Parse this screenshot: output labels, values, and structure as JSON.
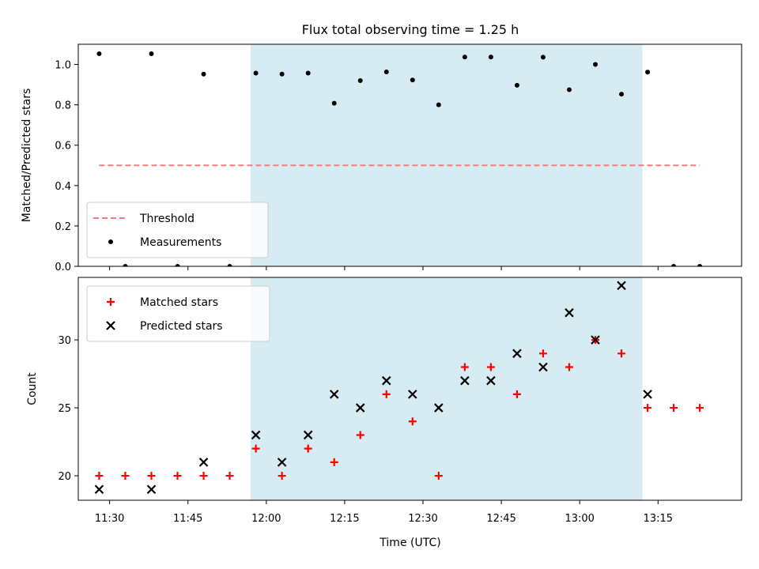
{
  "chart_data": {
    "title": "Flux total observing time = 1.25 h",
    "xlabel": "Time (UTC)",
    "x_ticks": [
      "11:30",
      "11:45",
      "12:00",
      "12:15",
      "12:30",
      "12:45",
      "13:00",
      "13:15"
    ],
    "x_range_minutes": [
      684,
      811
    ],
    "shaded_interval": {
      "start": "11:57",
      "end": "13:12",
      "color": "#add8e6"
    },
    "panels": [
      {
        "type": "scatter",
        "ylabel": "Matched/Predicted stars",
        "ylim": [
          0,
          1.1
        ],
        "yticks": [
          "0.0",
          "0.2",
          "0.4",
          "0.6",
          "0.8",
          "1.0"
        ],
        "legend_position": "lower-left",
        "threshold": {
          "name": "Threshold",
          "value": 0.5,
          "x_start": "11:28",
          "x_end": "13:23",
          "color": "#f08080"
        },
        "series": [
          {
            "name": "Measurements",
            "marker": "dot",
            "color": "#000000",
            "x": [
              "11:28",
              "11:33",
              "11:38",
              "11:43",
              "11:48",
              "11:53",
              "11:58",
              "12:03",
              "12:08",
              "12:13",
              "12:18",
              "12:23",
              "12:28",
              "12:33",
              "12:38",
              "12:43",
              "12:48",
              "12:53",
              "12:58",
              "13:03",
              "13:08",
              "13:13",
              "13:18",
              "13:23"
            ],
            "y": [
              1.053,
              0.0,
              1.053,
              0.0,
              0.952,
              0.0,
              0.957,
              0.952,
              0.957,
              0.808,
              0.92,
              0.963,
              0.923,
              0.8,
              1.037,
              1.037,
              0.897,
              1.036,
              0.875,
              1.0,
              0.853,
              0.962,
              0.0,
              0.0
            ]
          }
        ]
      },
      {
        "type": "scatter",
        "ylabel": "Count",
        "ylim": [
          18.2,
          34.6
        ],
        "yticks": [
          "20",
          "25",
          "30"
        ],
        "legend_position": "upper-left",
        "series": [
          {
            "name": "Matched stars",
            "marker": "plus",
            "color": "#ff0000",
            "x": [
              "11:28",
              "11:33",
              "11:38",
              "11:43",
              "11:48",
              "11:53",
              "11:58",
              "12:03",
              "12:08",
              "12:13",
              "12:18",
              "12:23",
              "12:28",
              "12:33",
              "12:38",
              "12:43",
              "12:48",
              "12:53",
              "12:58",
              "13:03",
              "13:08",
              "13:13",
              "13:18",
              "13:23"
            ],
            "y": [
              20,
              20,
              20,
              20,
              20,
              20,
              22,
              20,
              22,
              21,
              23,
              26,
              24,
              20,
              28,
              28,
              26,
              29,
              28,
              30,
              29,
              25,
              25,
              25
            ]
          },
          {
            "name": "Predicted stars",
            "marker": "x",
            "color": "#000000",
            "x": [
              "11:28",
              "11:38",
              "11:48",
              "11:58",
              "12:03",
              "12:08",
              "12:13",
              "12:18",
              "12:23",
              "12:28",
              "12:33",
              "12:38",
              "12:43",
              "12:48",
              "12:53",
              "12:58",
              "13:03",
              "13:08",
              "13:13"
            ],
            "y": [
              19,
              19,
              21,
              23,
              21,
              23,
              26,
              25,
              27,
              26,
              25,
              27,
              27,
              29,
              28,
              32,
              30,
              34,
              26
            ]
          }
        ]
      }
    ]
  }
}
